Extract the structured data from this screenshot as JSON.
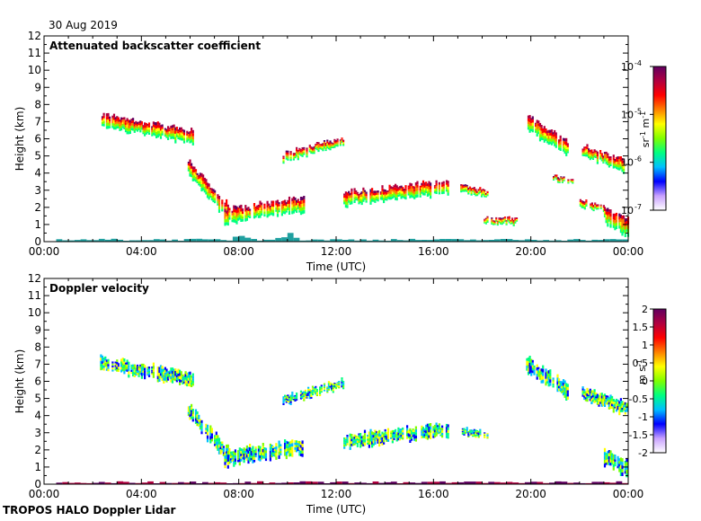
{
  "date": "30 Aug 2019",
  "footer": "TROPOS HALO Doppler Lidar",
  "chart_data": [
    {
      "type": "heatmap",
      "title": "Attenuated backscatter coefficient",
      "xlabel": "Time (UTC)",
      "ylabel": "Height (km)",
      "xlim": [
        0,
        24
      ],
      "ylim": [
        0,
        12
      ],
      "x_ticks": [
        0,
        4,
        8,
        12,
        16,
        20,
        24
      ],
      "x_tick_labels": [
        "00:00",
        "04:00",
        "08:00",
        "12:00",
        "16:00",
        "20:00",
        "00:00"
      ],
      "y_ticks": [
        0,
        1,
        2,
        3,
        4,
        5,
        6,
        7,
        8,
        9,
        10,
        11,
        12
      ],
      "y_tick_labels": [
        "0",
        "1",
        "2",
        "3",
        "4",
        "5",
        "6",
        "7",
        "8",
        "9",
        "10",
        "11",
        "12"
      ],
      "colorbar": {
        "scale": "log",
        "range": [
          1e-07,
          0.0001
        ],
        "ticks": [
          0.0001,
          1e-05,
          1e-06,
          1e-07
        ],
        "tick_labels": [
          "10",
          "10",
          "10",
          "10"
        ],
        "tick_exponents": [
          "-4",
          "-5",
          "-6",
          "-7"
        ],
        "label": "sr",
        "label_exp1": "-1",
        "label_mid": " m",
        "label_exp2": "-1",
        "colors": [
          "#ffffff",
          "#c8a0ff",
          "#0000ff",
          "#00c0ff",
          "#00ff80",
          "#80ff00",
          "#ffff00",
          "#ff8000",
          "#ff0000",
          "#b00040",
          "#600060"
        ]
      },
      "features": [
        {
          "name": "mid-cloud layer",
          "t0": 2.3,
          "t1": 6.1,
          "h0": 7.1,
          "h1": 6.1,
          "thick": 0.8
        },
        {
          "name": "descending layer",
          "t0": 5.9,
          "t1": 7.6,
          "h0": 4.3,
          "h1": 1.6,
          "thick": 0.9
        },
        {
          "name": "boundary layer 1",
          "t0": 7.4,
          "t1": 10.7,
          "h0": 1.5,
          "h1": 2.2,
          "thick": 0.9
        },
        {
          "name": "layer 9.8-12.3 h",
          "t0": 9.8,
          "t1": 12.3,
          "h0": 4.9,
          "h1": 5.9,
          "thick": 0.5
        },
        {
          "name": "layer 12.3-16.6 h",
          "t0": 12.3,
          "t1": 16.6,
          "h0": 2.5,
          "h1": 3.2,
          "thick": 0.8
        },
        {
          "name": "layer 17.1-18.2 h",
          "t0": 17.1,
          "t1": 18.2,
          "h0": 3.1,
          "h1": 2.8,
          "thick": 0.4
        },
        {
          "name": "layer 18.0-19.5 h",
          "t0": 18.0,
          "t1": 19.5,
          "h0": 1.2,
          "h1": 1.2,
          "thick": 0.35
        },
        {
          "name": "upper layer 19.8-21.5 h",
          "t0": 19.8,
          "t1": 21.5,
          "h0": 7.0,
          "h1": 5.4,
          "thick": 0.9
        },
        {
          "name": "layer 20.9-21.7 h",
          "t0": 20.9,
          "t1": 21.7,
          "h0": 3.7,
          "h1": 3.5,
          "thick": 0.3
        },
        {
          "name": "upper layer 22.1-23.9 h",
          "t0": 22.1,
          "t1": 23.9,
          "h0": 5.3,
          "h1": 4.4,
          "thick": 0.7
        },
        {
          "name": "layer 22.0-23.0 h",
          "t0": 22.0,
          "t1": 23.0,
          "h0": 2.3,
          "h1": 1.9,
          "thick": 0.4
        },
        {
          "name": "low layer 23.0-24.0 h",
          "t0": 23.0,
          "t1": 24.0,
          "h0": 1.6,
          "h1": 0.8,
          "thick": 1.0
        }
      ]
    },
    {
      "type": "heatmap",
      "title": "Doppler velocity",
      "xlabel": "Time (UTC)",
      "ylabel": "Height (km)",
      "xlim": [
        0,
        24
      ],
      "ylim": [
        0,
        12
      ],
      "x_ticks": [
        0,
        4,
        8,
        12,
        16,
        20,
        24
      ],
      "x_tick_labels": [
        "00:00",
        "04:00",
        "08:00",
        "12:00",
        "16:00",
        "20:00",
        "00:00"
      ],
      "y_ticks": [
        0,
        1,
        2,
        3,
        4,
        5,
        6,
        7,
        8,
        9,
        10,
        11,
        12
      ],
      "y_tick_labels": [
        "0",
        "1",
        "2",
        "3",
        "4",
        "5",
        "6",
        "7",
        "8",
        "9",
        "10",
        "11",
        "12"
      ],
      "colorbar": {
        "scale": "linear",
        "range": [
          -2,
          2
        ],
        "ticks": [
          2,
          1.5,
          1,
          0.5,
          0,
          -0.5,
          -1,
          -1.5,
          -2
        ],
        "tick_labels": [
          "2",
          "1.5",
          "1",
          "0.5",
          "0",
          "-0.5",
          "-1",
          "-1.5",
          "-2"
        ],
        "label": "m s",
        "label_exp1": "-1",
        "colors": [
          "#ffffff",
          "#c8a0ff",
          "#0000ff",
          "#00c0ff",
          "#00ff80",
          "#80ff00",
          "#ffff00",
          "#ff8000",
          "#ff0000",
          "#b00040",
          "#600060"
        ]
      },
      "features": [
        {
          "name": "mid-cloud layer",
          "t0": 2.3,
          "t1": 6.1,
          "h0": 7.1,
          "h1": 6.1,
          "thick": 0.8
        },
        {
          "name": "descending layer",
          "t0": 5.9,
          "t1": 7.6,
          "h0": 4.3,
          "h1": 1.6,
          "thick": 0.9
        },
        {
          "name": "boundary layer 1",
          "t0": 7.4,
          "t1": 10.7,
          "h0": 1.5,
          "h1": 2.2,
          "thick": 0.9
        },
        {
          "name": "layer 9.8-12.3 h",
          "t0": 9.8,
          "t1": 12.3,
          "h0": 4.9,
          "h1": 5.9,
          "thick": 0.5
        },
        {
          "name": "layer 12.3-16.6 h",
          "t0": 12.3,
          "t1": 16.6,
          "h0": 2.5,
          "h1": 3.2,
          "thick": 0.8
        },
        {
          "name": "layer 17.1-18.2 h",
          "t0": 17.1,
          "t1": 18.2,
          "h0": 3.1,
          "h1": 2.8,
          "thick": 0.4
        },
        {
          "name": "upper layer 19.8-21.5 h",
          "t0": 19.8,
          "t1": 21.5,
          "h0": 7.0,
          "h1": 5.4,
          "thick": 0.9
        },
        {
          "name": "upper layer 22.1-23.9 h",
          "t0": 22.1,
          "t1": 23.9,
          "h0": 5.3,
          "h1": 4.4,
          "thick": 0.7
        },
        {
          "name": "low layer 23.0-24.0 h",
          "t0": 23.0,
          "t1": 24.0,
          "h0": 1.6,
          "h1": 0.8,
          "thick": 1.0
        }
      ]
    }
  ]
}
